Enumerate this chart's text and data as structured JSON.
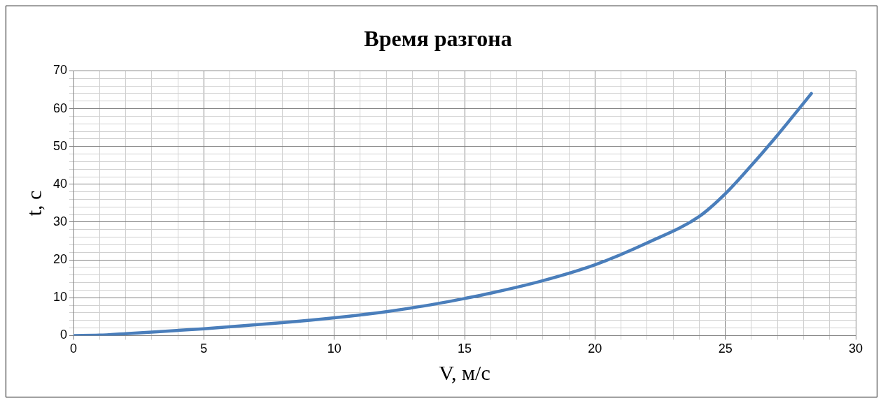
{
  "chart_data": {
    "type": "line",
    "title": "Время разгона",
    "xlabel": "V, м/с",
    "ylabel": "t, с",
    "xlim": [
      0,
      30
    ],
    "ylim": [
      0,
      70
    ],
    "xticks": [
      0,
      {
        "value": 1,
        "label": null
      },
      {
        "value": 2,
        "label": null
      },
      {
        "value": 3,
        "label": null
      },
      {
        "value": 4,
        "label": null
      },
      5,
      {
        "value": 6,
        "label": null
      },
      {
        "value": 7,
        "label": null
      },
      {
        "value": 8,
        "label": null
      },
      {
        "value": 9,
        "label": null
      },
      10,
      {
        "value": 11,
        "label": null
      },
      {
        "value": 12,
        "label": null
      },
      {
        "value": 13,
        "label": null
      },
      {
        "value": 14,
        "label": null
      },
      15,
      {
        "value": 16,
        "label": null
      },
      {
        "value": 17,
        "label": null
      },
      {
        "value": 18,
        "label": null
      },
      {
        "value": 19,
        "label": null
      },
      20,
      {
        "value": 21,
        "label": null
      },
      {
        "value": 22,
        "label": null
      },
      {
        "value": 23,
        "label": null
      },
      {
        "value": 24,
        "label": null
      },
      25,
      {
        "value": 26,
        "label": null
      },
      {
        "value": 27,
        "label": null
      },
      {
        "value": 28,
        "label": null
      },
      {
        "value": 29,
        "label": null
      },
      30
    ],
    "yticks": [
      0,
      {
        "value": 2,
        "label": null
      },
      {
        "value": 4,
        "label": null
      },
      {
        "value": 6,
        "label": null
      },
      {
        "value": 8,
        "label": null
      },
      10,
      {
        "value": 12,
        "label": null
      },
      {
        "value": 14,
        "label": null
      },
      {
        "value": 16,
        "label": null
      },
      {
        "value": 18,
        "label": null
      },
      20,
      {
        "value": 22,
        "label": null
      },
      {
        "value": 24,
        "label": null
      },
      {
        "value": 26,
        "label": null
      },
      {
        "value": 28,
        "label": null
      },
      30,
      {
        "value": 32,
        "label": null
      },
      {
        "value": 34,
        "label": null
      },
      {
        "value": 36,
        "label": null
      },
      {
        "value": 38,
        "label": null
      },
      40,
      {
        "value": 42,
        "label": null
      },
      {
        "value": 44,
        "label": null
      },
      {
        "value": 46,
        "label": null
      },
      {
        "value": 48,
        "label": null
      },
      50,
      {
        "value": 52,
        "label": null
      },
      {
        "value": 54,
        "label": null
      },
      {
        "value": 56,
        "label": null
      },
      {
        "value": 58,
        "label": null
      },
      60,
      {
        "value": 62,
        "label": null
      },
      {
        "value": 64,
        "label": null
      },
      {
        "value": 66,
        "label": null
      },
      {
        "value": 68,
        "label": null
      },
      70
    ],
    "grid": true,
    "marker": "none",
    "line_style": "solid",
    "series": [
      {
        "color": "#4a7ebb",
        "x": [
          0,
          1,
          2,
          3,
          5,
          8,
          10,
          12,
          14,
          15,
          16,
          18,
          20,
          22,
          24,
          25,
          26,
          27,
          28.3
        ],
        "values": [
          0,
          0.1,
          0.5,
          0.9,
          1.8,
          3.4,
          4.7,
          6.3,
          8.5,
          9.8,
          11.2,
          14.5,
          18.7,
          24.5,
          31.5,
          37.5,
          45,
          53,
          64
        ]
      }
    ]
  }
}
